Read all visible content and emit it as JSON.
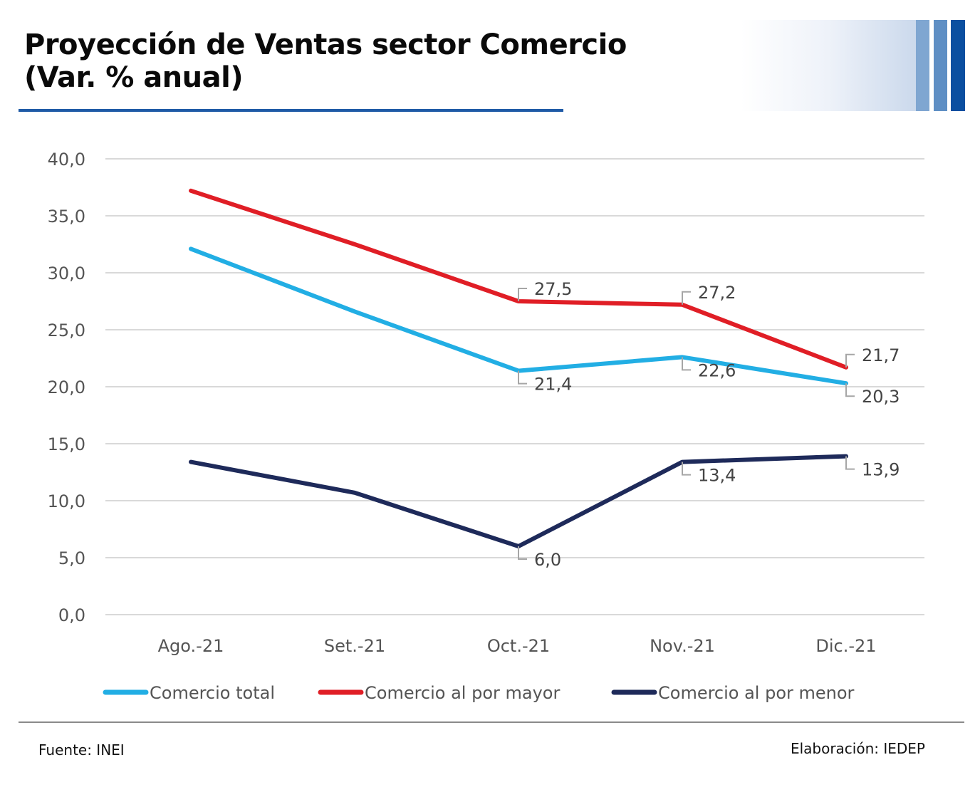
{
  "header": {
    "title_line1": "Proyección de Ventas sector Comercio",
    "title_line2": "(Var. % anual)"
  },
  "footer": {
    "source": "Fuente:  INEI",
    "credit": "Elaboración: IEDEP"
  },
  "colors": {
    "accent": "#1f5aa6",
    "comercio_total": "#22aee4",
    "comercio_mayor": "#e01e26",
    "comercio_menor": "#1e2a5a",
    "grid": "#d9d9d9",
    "leader": "#a6a6a6"
  },
  "chart_data": {
    "type": "line",
    "title": "Proyección de Ventas sector Comercio (Var. % anual)",
    "xlabel": "",
    "ylabel": "",
    "categories": [
      "Ago.-21",
      "Set.-21",
      "Oct.-21",
      "Nov.-21",
      "Dic.-21"
    ],
    "ylim": [
      0,
      40
    ],
    "yticks": [
      0,
      5,
      10,
      15,
      20,
      25,
      30,
      35,
      40
    ],
    "ytick_labels": [
      "0,0",
      "5,0",
      "10,0",
      "15,0",
      "20,0",
      "25,0",
      "30,0",
      "35,0",
      "40,0"
    ],
    "grid": true,
    "legend_position": "bottom",
    "series": [
      {
        "name": "Comercio total",
        "color": "#22aee4",
        "values": [
          32.1,
          26.6,
          21.4,
          22.6,
          20.3
        ],
        "data_labels": [
          null,
          null,
          "21,4",
          "22,6",
          "20,3"
        ],
        "label_side": "below"
      },
      {
        "name": "Comercio al por mayor",
        "color": "#e01e26",
        "values": [
          37.2,
          32.5,
          27.5,
          27.2,
          21.7
        ],
        "data_labels": [
          null,
          null,
          "27,5",
          "27,2",
          "21,7"
        ],
        "label_side": "above"
      },
      {
        "name": "Comercio al por menor",
        "color": "#1e2a5a",
        "values": [
          13.4,
          10.7,
          6.0,
          13.4,
          13.9
        ],
        "data_labels": [
          null,
          null,
          "6,0",
          "13,4",
          "13,9"
        ],
        "label_side": "below"
      }
    ]
  }
}
